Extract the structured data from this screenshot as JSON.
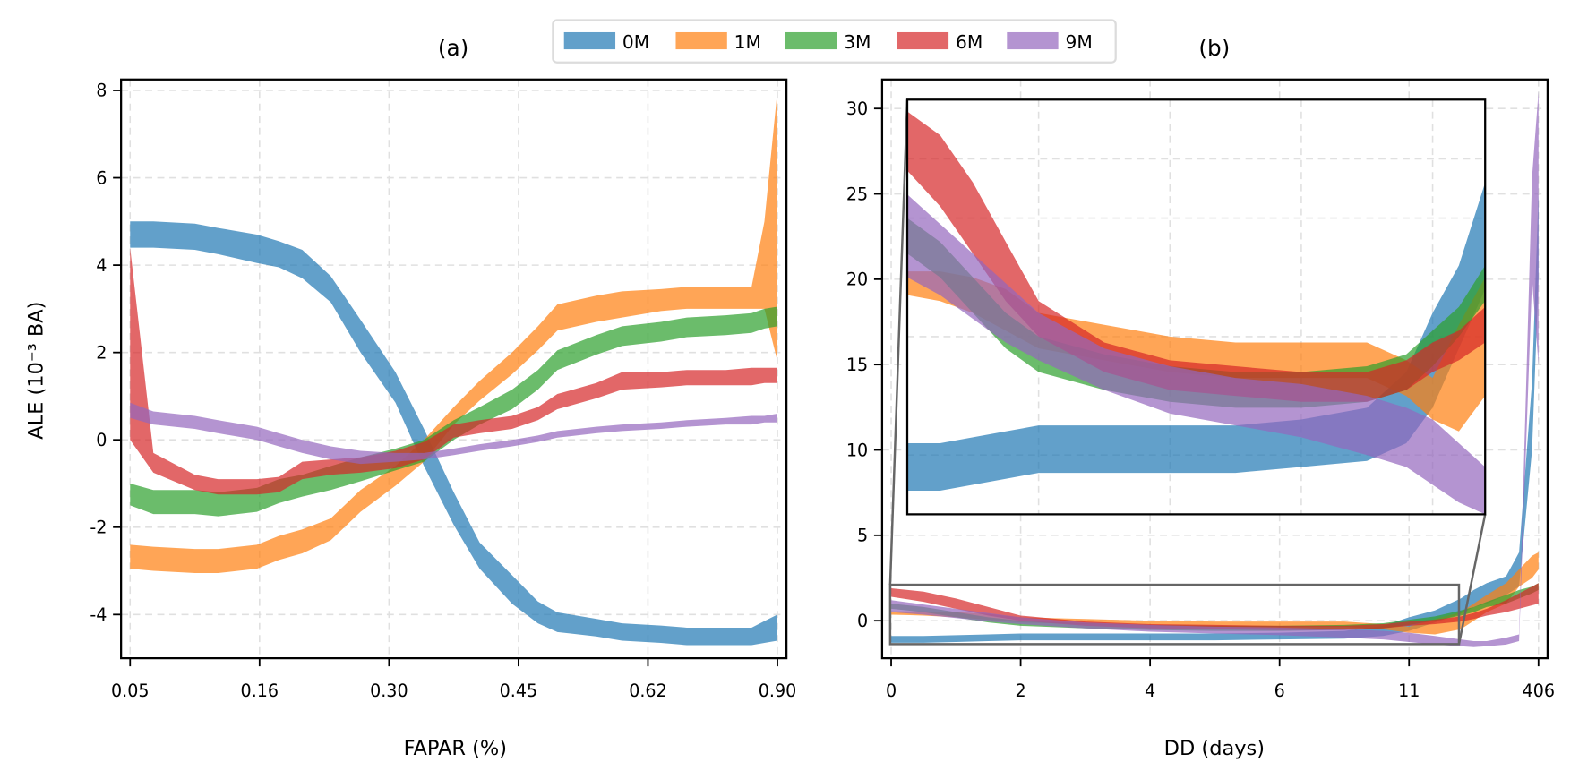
{
  "chart_data": [
    {
      "id": "a",
      "type": "area",
      "title": "(a)",
      "xlabel": "FAPAR (%)",
      "ylabel": "ALE (10⁻³ BA)",
      "xtick_labels": [
        "0.05",
        "0.16",
        "0.30",
        "0.45",
        "0.62",
        "0.90"
      ],
      "ytick_values": [
        -4,
        -2,
        0,
        2,
        4,
        6,
        8
      ],
      "ytick_labels": [
        "-4",
        "-2",
        "0",
        "2",
        "4",
        "6",
        "8"
      ],
      "ylim": [
        -5,
        8.25
      ],
      "xlim_index": [
        -0.07,
        5.07
      ],
      "grid": true,
      "x_index": [
        0,
        0.18,
        0.5,
        0.68,
        0.98,
        1.15,
        1.33,
        1.55,
        1.78,
        2.05,
        2.27,
        2.5,
        2.7,
        2.95,
        3.15,
        3.3,
        3.6,
        3.8,
        4.1,
        4.3,
        4.6,
        4.8,
        4.9,
        5.0
      ],
      "series": [
        {
          "name": "0M",
          "lower": [
            4.4,
            4.4,
            4.35,
            4.25,
            4.05,
            3.95,
            3.7,
            3.15,
            2.0,
            0.85,
            -0.6,
            -1.95,
            -2.95,
            -3.75,
            -4.2,
            -4.4,
            -4.5,
            -4.6,
            -4.65,
            -4.7,
            -4.7,
            -4.7,
            -4.65,
            -4.6
          ],
          "upper": [
            5.0,
            5.0,
            4.95,
            4.85,
            4.7,
            4.55,
            4.35,
            3.75,
            2.75,
            1.55,
            0.25,
            -1.2,
            -2.35,
            -3.1,
            -3.7,
            -3.95,
            -4.1,
            -4.2,
            -4.25,
            -4.3,
            -4.3,
            -4.3,
            -4.15,
            -4.0
          ]
        },
        {
          "name": "1M",
          "lower": [
            -2.95,
            -3.0,
            -3.05,
            -3.05,
            -2.95,
            -2.75,
            -2.6,
            -2.3,
            -1.65,
            -1.05,
            -0.5,
            0.35,
            0.9,
            1.5,
            2.05,
            2.5,
            2.7,
            2.8,
            2.95,
            3.0,
            3.0,
            3.0,
            3.0,
            1.8
          ],
          "upper": [
            -2.4,
            -2.45,
            -2.5,
            -2.5,
            -2.4,
            -2.2,
            -2.05,
            -1.8,
            -1.15,
            -0.6,
            0.0,
            0.75,
            1.35,
            2.0,
            2.6,
            3.1,
            3.3,
            3.4,
            3.45,
            3.5,
            3.5,
            3.5,
            5.0,
            8.0
          ]
        },
        {
          "name": "3M",
          "lower": [
            -1.5,
            -1.7,
            -1.7,
            -1.75,
            -1.65,
            -1.45,
            -1.3,
            -1.15,
            -0.95,
            -0.7,
            -0.5,
            0.0,
            0.35,
            0.7,
            1.15,
            1.6,
            1.95,
            2.15,
            2.25,
            2.35,
            2.4,
            2.45,
            2.55,
            2.6
          ],
          "upper": [
            -1.0,
            -1.15,
            -1.15,
            -1.2,
            -1.1,
            -0.9,
            -0.8,
            -0.6,
            -0.4,
            -0.2,
            0.0,
            0.45,
            0.75,
            1.15,
            1.6,
            2.05,
            2.4,
            2.6,
            2.7,
            2.8,
            2.85,
            2.9,
            3.0,
            3.05
          ]
        },
        {
          "name": "6M",
          "lower": [
            0.0,
            -0.75,
            -1.15,
            -1.25,
            -1.25,
            -1.2,
            -0.9,
            -0.8,
            -0.75,
            -0.65,
            -0.45,
            0.05,
            0.15,
            0.25,
            0.45,
            0.7,
            0.95,
            1.15,
            1.2,
            1.25,
            1.25,
            1.25,
            1.3,
            1.3
          ],
          "upper": [
            4.4,
            -0.3,
            -0.8,
            -0.9,
            -0.9,
            -0.85,
            -0.5,
            -0.45,
            -0.4,
            -0.25,
            -0.05,
            0.35,
            0.45,
            0.55,
            0.75,
            1.05,
            1.3,
            1.55,
            1.55,
            1.6,
            1.6,
            1.65,
            1.65,
            1.65
          ]
        },
        {
          "name": "9M",
          "lower": [
            0.5,
            0.35,
            0.25,
            0.15,
            0.0,
            -0.15,
            -0.3,
            -0.45,
            -0.55,
            -0.5,
            -0.45,
            -0.35,
            -0.25,
            -0.15,
            -0.05,
            0.05,
            0.15,
            0.2,
            0.25,
            0.3,
            0.35,
            0.35,
            0.4,
            0.4
          ],
          "upper": [
            0.85,
            0.65,
            0.55,
            0.45,
            0.3,
            0.15,
            0.0,
            -0.15,
            -0.25,
            -0.3,
            -0.3,
            -0.2,
            -0.1,
            0.0,
            0.1,
            0.2,
            0.3,
            0.35,
            0.4,
            0.45,
            0.5,
            0.55,
            0.55,
            0.6
          ]
        }
      ]
    },
    {
      "id": "b",
      "type": "area",
      "title": "(b)",
      "xlabel": "DD (days)",
      "ylabel": "",
      "xtick_labels": [
        "0",
        "2",
        "4",
        "6",
        "11",
        "406"
      ],
      "ytick_values": [
        0,
        5,
        10,
        15,
        20,
        25,
        30
      ],
      "ytick_labels": [
        "0",
        "5",
        "10",
        "15",
        "20",
        "25",
        "30"
      ],
      "ylim": [
        -2.2,
        31.7
      ],
      "xlim_index": [
        -0.07,
        5.07
      ],
      "grid": true,
      "x_index": [
        0,
        0.25,
        0.5,
        0.75,
        1.0,
        1.5,
        2.0,
        2.5,
        3.0,
        3.5,
        3.8,
        4.0,
        4.2,
        4.4,
        4.5,
        4.6,
        4.75,
        4.85,
        4.95,
        5.0
      ],
      "series": [
        {
          "name": "0M",
          "lower": [
            -1.3,
            -1.3,
            -1.25,
            -1.2,
            -1.15,
            -1.15,
            -1.15,
            -1.15,
            -1.1,
            -1.05,
            -0.9,
            -0.6,
            -0.1,
            0.4,
            0.8,
            1.0,
            1.5,
            2.0,
            10,
            20
          ],
          "upper": [
            -0.9,
            -0.9,
            -0.85,
            -0.8,
            -0.75,
            -0.75,
            -0.75,
            -0.75,
            -0.7,
            -0.6,
            -0.3,
            0.2,
            0.6,
            1.3,
            1.8,
            2.2,
            2.6,
            4.0,
            14,
            25
          ]
        },
        {
          "name": "1M",
          "lower": [
            0.35,
            0.3,
            0.2,
            0.05,
            -0.1,
            -0.2,
            -0.3,
            -0.35,
            -0.35,
            -0.35,
            -0.5,
            -0.7,
            -0.8,
            -0.5,
            0.0,
            0.5,
            1.0,
            2.0,
            2.5,
            3.0
          ],
          "upper": [
            0.55,
            0.55,
            0.5,
            0.4,
            0.2,
            0.1,
            0.0,
            -0.05,
            -0.05,
            -0.05,
            -0.2,
            -0.35,
            0.1,
            0.5,
            1.0,
            1.5,
            2.2,
            3.0,
            3.8,
            4.0
          ]
        },
        {
          "name": "3M",
          "lower": [
            0.7,
            0.5,
            0.2,
            -0.1,
            -0.3,
            -0.45,
            -0.55,
            -0.6,
            -0.6,
            -0.55,
            -0.45,
            -0.25,
            0.0,
            0.3,
            0.5,
            0.8,
            1.0,
            1.3,
            1.6,
            1.8
          ],
          "upper": [
            1.0,
            0.8,
            0.5,
            0.2,
            0.0,
            -0.15,
            -0.25,
            -0.3,
            -0.3,
            -0.25,
            -0.15,
            0.05,
            0.25,
            0.6,
            0.8,
            1.1,
            1.5,
            1.8,
            2.0,
            2.2
          ]
        },
        {
          "name": "6M",
          "lower": [
            1.4,
            1.1,
            0.7,
            0.3,
            0.0,
            -0.3,
            -0.45,
            -0.5,
            -0.55,
            -0.55,
            -0.45,
            -0.3,
            -0.2,
            -0.05,
            0.1,
            0.3,
            0.5,
            0.7,
            0.9,
            1.0
          ],
          "upper": [
            1.9,
            1.7,
            1.3,
            0.8,
            0.3,
            -0.05,
            -0.2,
            -0.25,
            -0.3,
            -0.3,
            -0.2,
            -0.05,
            0.05,
            0.25,
            0.45,
            0.7,
            1.2,
            1.6,
            2.0,
            2.2
          ]
        },
        {
          "name": "9M",
          "lower": [
            0.5,
            0.35,
            0.15,
            -0.05,
            -0.2,
            -0.45,
            -0.65,
            -0.75,
            -0.85,
            -1.0,
            -1.1,
            -1.25,
            -1.4,
            -1.5,
            -1.55,
            -1.5,
            -1.4,
            -1.2,
            20,
            15
          ],
          "upper": [
            1.2,
            0.95,
            0.7,
            0.45,
            0.2,
            -0.1,
            -0.25,
            -0.35,
            -0.4,
            -0.5,
            -0.6,
            -0.7,
            -0.9,
            -1.1,
            -1.2,
            -1.2,
            -1.0,
            -0.8,
            26,
            31
          ]
        }
      ],
      "inset": {
        "source_xlim_index": [
          0,
          4.4
        ],
        "source_ylim": [
          -1.5,
          2.0
        ],
        "ylabels_shared": true
      }
    }
  ],
  "legend": {
    "entries": [
      {
        "label": "0M",
        "color": "#1f77b4"
      },
      {
        "label": "1M",
        "color": "#ff7f0e"
      },
      {
        "label": "3M",
        "color": "#2ca02c"
      },
      {
        "label": "6M",
        "color": "#d62728"
      },
      {
        "label": "9M",
        "color": "#9467bd"
      }
    ],
    "placement": "top-center"
  },
  "style": {
    "band_opacity": 0.7,
    "grid_color": "#e0e0e0",
    "inset_connector_color": "#666666"
  }
}
